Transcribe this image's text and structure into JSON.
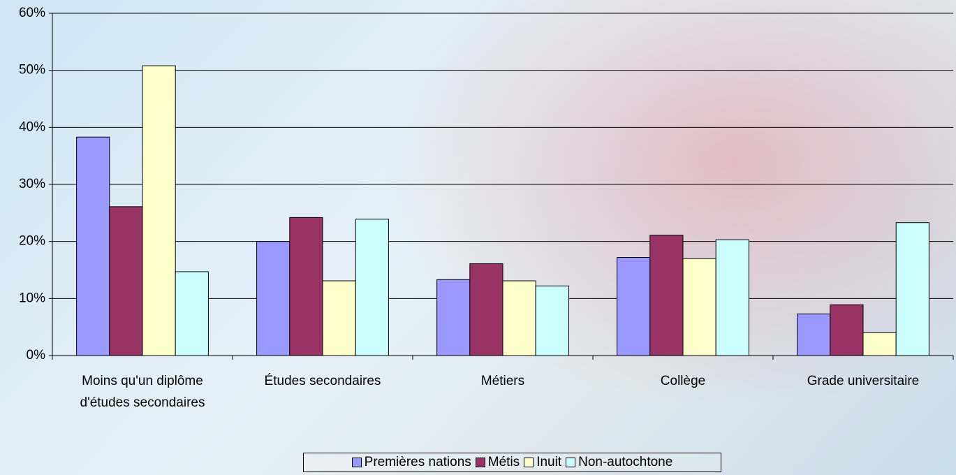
{
  "chart_data": {
    "type": "bar",
    "categories": [
      "Moins qu'un diplôme d'études secondaires",
      "Études secondaires",
      "Métiers",
      "Collège",
      "Grade universitaire"
    ],
    "series": [
      {
        "name": "Premières nations",
        "color": "#9999ff",
        "values": [
          38.3,
          20.0,
          13.3,
          17.2,
          7.3
        ]
      },
      {
        "name": "Métis",
        "color": "#993366",
        "values": [
          26.1,
          24.2,
          16.1,
          21.1,
          8.9
        ]
      },
      {
        "name": "Inuit",
        "color": "#ffffcc",
        "values": [
          50.8,
          13.1,
          13.1,
          17.0,
          4.0
        ]
      },
      {
        "name": "Non-autochtone",
        "color": "#ccffff",
        "values": [
          14.7,
          23.9,
          12.2,
          20.3,
          23.3
        ]
      }
    ],
    "ylim": [
      0,
      60
    ],
    "yticks": [
      {
        "value": 0,
        "label": "0%"
      },
      {
        "value": 10,
        "label": "10%"
      },
      {
        "value": 20,
        "label": "20%"
      },
      {
        "value": 30,
        "label": "30%"
      },
      {
        "value": 40,
        "label": "40%"
      },
      {
        "value": 50,
        "label": "50%"
      },
      {
        "value": 60,
        "label": "60%"
      }
    ],
    "grid": true,
    "legend": "bottom"
  }
}
